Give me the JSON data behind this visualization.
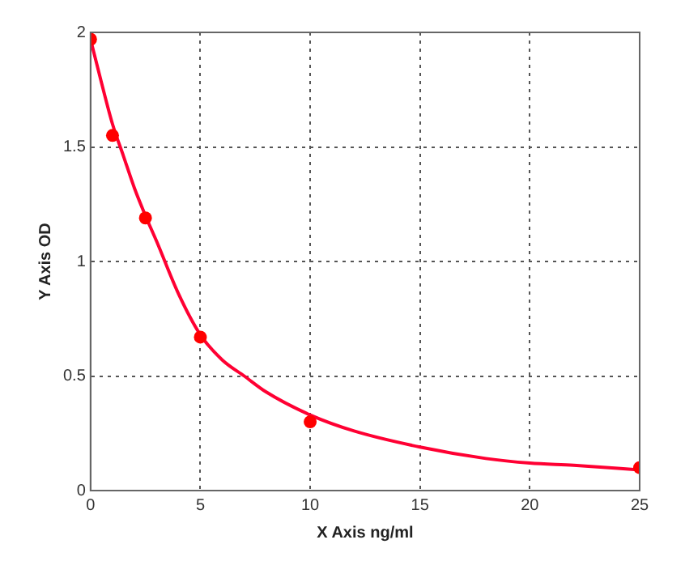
{
  "chart_data": {
    "type": "scatter",
    "xlabel": "X Axis ng/ml",
    "ylabel": "Y Axis OD",
    "xlim": [
      0,
      25
    ],
    "xticks": [
      0,
      5,
      10,
      15,
      20,
      25
    ],
    "ylim": [
      0,
      2
    ],
    "yticks": [
      0,
      0.5,
      1,
      1.5,
      2
    ],
    "grid": true,
    "legend": false,
    "series": [
      {
        "type": "line",
        "color": "#ff0033",
        "marker": "none",
        "line_style": "solid",
        "x": [
          0,
          0.5,
          1,
          1.5,
          2,
          2.5,
          3,
          4,
          5,
          6,
          7,
          8,
          10,
          12,
          15,
          18,
          20,
          22,
          25
        ],
        "values": [
          1.97,
          1.78,
          1.6,
          1.46,
          1.32,
          1.2,
          1.09,
          0.86,
          0.68,
          0.57,
          0.5,
          0.43,
          0.33,
          0.26,
          0.19,
          0.14,
          0.12,
          0.11,
          0.09
        ]
      },
      {
        "color": "#ff0000",
        "marker": "circle",
        "x": [
          0,
          1,
          2.5,
          5,
          10,
          25
        ],
        "values": [
          1.97,
          1.55,
          1.19,
          0.67,
          0.3,
          0.1
        ]
      }
    ]
  }
}
